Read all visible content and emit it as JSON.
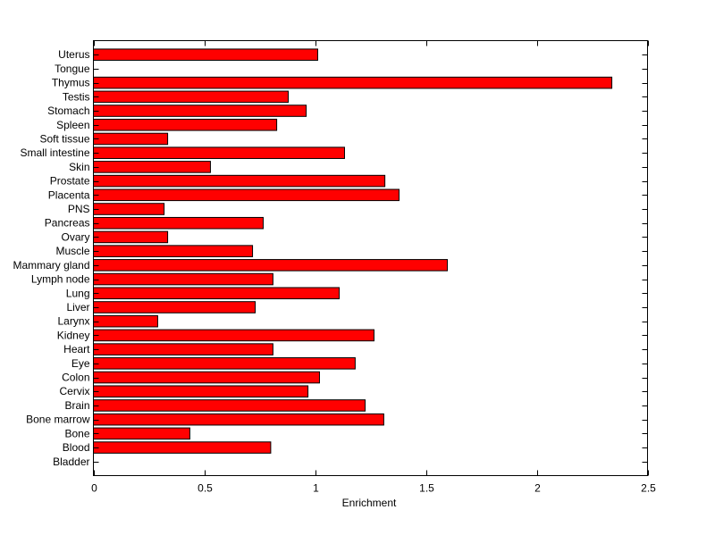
{
  "chart_data": {
    "type": "bar",
    "orientation": "horizontal",
    "title": "",
    "xlabel": "Enrichment",
    "ylabel": "",
    "xlim": [
      0,
      2.5
    ],
    "xticks": [
      "0",
      "0.5",
      "1",
      "1.5",
      "2",
      "2.5"
    ],
    "grid": false,
    "bar_color": "#ff0000",
    "edge_color": "#000000",
    "categories": [
      "Bladder",
      "Blood",
      "Bone",
      "Bone marrow",
      "Brain",
      "Cervix",
      "Colon",
      "Eye",
      "Heart",
      "Kidney",
      "Larynx",
      "Liver",
      "Lung",
      "Lymph node",
      "Mammary gland",
      "Muscle",
      "Ovary",
      "Pancreas",
      "PNS",
      "Placenta",
      "Prostate",
      "Skin",
      "Small intestine",
      "Soft tissue",
      "Spleen",
      "Stomach",
      "Testis",
      "Thymus",
      "Tongue",
      "Uterus"
    ],
    "values": [
      0,
      0.8,
      0.435,
      1.31,
      1.226,
      0.968,
      1.02,
      1.181,
      0.81,
      1.266,
      0.29,
      0.73,
      1.109,
      0.81,
      1.597,
      0.718,
      0.335,
      0.766,
      0.319,
      1.379,
      1.315,
      0.528,
      1.133,
      0.335,
      0.827,
      0.96,
      0.879,
      2.339,
      0,
      1.012
    ]
  }
}
